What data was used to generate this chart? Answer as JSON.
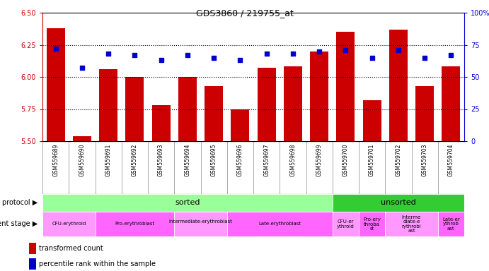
{
  "title": "GDS3860 / 219755_at",
  "samples": [
    "GSM559689",
    "GSM559690",
    "GSM559691",
    "GSM559692",
    "GSM559693",
    "GSM559694",
    "GSM559695",
    "GSM559696",
    "GSM559697",
    "GSM559698",
    "GSM559699",
    "GSM559700",
    "GSM559701",
    "GSM559702",
    "GSM559703",
    "GSM559704"
  ],
  "bar_values": [
    6.38,
    5.54,
    6.06,
    6.0,
    5.78,
    6.0,
    5.93,
    5.75,
    6.07,
    6.08,
    6.2,
    6.35,
    5.82,
    6.37,
    5.93,
    6.08
  ],
  "dot_values": [
    72,
    57,
    68,
    67,
    63,
    67,
    65,
    63,
    68,
    68,
    70,
    71,
    65,
    71,
    65,
    67
  ],
  "ylim": [
    5.5,
    6.5
  ],
  "y2lim": [
    0,
    100
  ],
  "yticks": [
    5.5,
    5.75,
    6.0,
    6.25,
    6.5
  ],
  "y2ticks": [
    0,
    25,
    50,
    75,
    100
  ],
  "bar_color": "#cc0000",
  "dot_color": "#0000cc",
  "background_color": "#ffffff",
  "protocol_sorted_count": 11,
  "protocol_sorted_label": "sorted",
  "protocol_unsorted_label": "unsorted",
  "protocol_sorted_color": "#99ff99",
  "protocol_unsorted_color": "#33cc33",
  "dev_regions": [
    {
      "label": "CFU-erythroid",
      "start": 0,
      "end": 2,
      "color": "#ff99ff"
    },
    {
      "label": "Pro-erythroblast",
      "start": 2,
      "end": 5,
      "color": "#ff66ff"
    },
    {
      "label": "Intermediate-erythroblast\n",
      "start": 5,
      "end": 7,
      "color": "#ff99ff"
    },
    {
      "label": "Late-erythroblast",
      "start": 7,
      "end": 11,
      "color": "#ff66ff"
    },
    {
      "label": "CFU-er\nythroid",
      "start": 11,
      "end": 12,
      "color": "#ff99ff"
    },
    {
      "label": "Pro-ery\nthroba\nst",
      "start": 12,
      "end": 13,
      "color": "#ff66ff"
    },
    {
      "label": "Interme\ndiate-e\nrythrobl\nast",
      "start": 13,
      "end": 15,
      "color": "#ff99ff"
    },
    {
      "label": "Late-er\nythrob\nast",
      "start": 15,
      "end": 16,
      "color": "#ff66ff"
    }
  ],
  "legend_bar_label": "transformed count",
  "legend_dot_label": "percentile rank within the sample",
  "axis_label_color_left": "#cc0000",
  "axis_label_color_right": "#0000cc",
  "tick_bg_color": "#c8c8c8",
  "tick_border_color": "#888888"
}
